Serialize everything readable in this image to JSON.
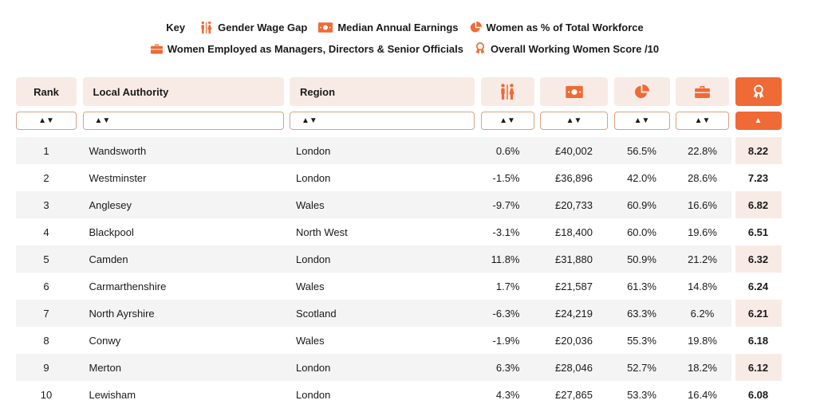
{
  "key": {
    "title": "Key",
    "items": [
      {
        "icon": "gender-icon",
        "label": "Gender Wage Gap"
      },
      {
        "icon": "money-icon",
        "label": "Median Annual Earnings"
      },
      {
        "icon": "pie-chart-icon",
        "label": "Women as % of Total Workforce"
      },
      {
        "icon": "briefcase-icon",
        "label": "Women Employed as Managers, Directors & Senior Officials"
      },
      {
        "icon": "award-icon",
        "label": "Overall Working Women Score /10"
      }
    ]
  },
  "headers": {
    "rank": "Rank",
    "authority": "Local Authority",
    "region": "Region"
  },
  "sort": {
    "both": "▲▼",
    "asc": "▲"
  },
  "accent": "#ef6a35",
  "rows": [
    [
      "1",
      "Wandsworth",
      "London",
      "0.6%",
      "£40,002",
      "56.5%",
      "22.8%",
      "8.22"
    ],
    [
      "2",
      "Westminster",
      "London",
      "-1.5%",
      "£36,896",
      "42.0%",
      "28.6%",
      "7.23"
    ],
    [
      "3",
      "Anglesey",
      "Wales",
      "-9.7%",
      "£20,733",
      "60.9%",
      "16.6%",
      "6.82"
    ],
    [
      "4",
      "Blackpool",
      "North West",
      "-3.1%",
      "£18,400",
      "60.0%",
      "19.6%",
      "6.51"
    ],
    [
      "5",
      "Camden",
      "London",
      "11.8%",
      "£31,880",
      "50.9%",
      "21.2%",
      "6.32"
    ],
    [
      "6",
      "Carmarthenshire",
      "Wales",
      "1.7%",
      "£21,587",
      "61.3%",
      "14.8%",
      "6.24"
    ],
    [
      "7",
      "North Ayrshire",
      "Scotland",
      "-6.3%",
      "£24,219",
      "63.3%",
      "6.2%",
      "6.21"
    ],
    [
      "8",
      "Conwy",
      "Wales",
      "-1.9%",
      "£20,036",
      "55.3%",
      "19.8%",
      "6.18"
    ],
    [
      "9",
      "Merton",
      "London",
      "6.3%",
      "£28,046",
      "52.7%",
      "18.2%",
      "6.12"
    ],
    [
      "10",
      "Lewisham",
      "London",
      "4.3%",
      "£27,865",
      "53.3%",
      "16.4%",
      "6.08"
    ]
  ]
}
